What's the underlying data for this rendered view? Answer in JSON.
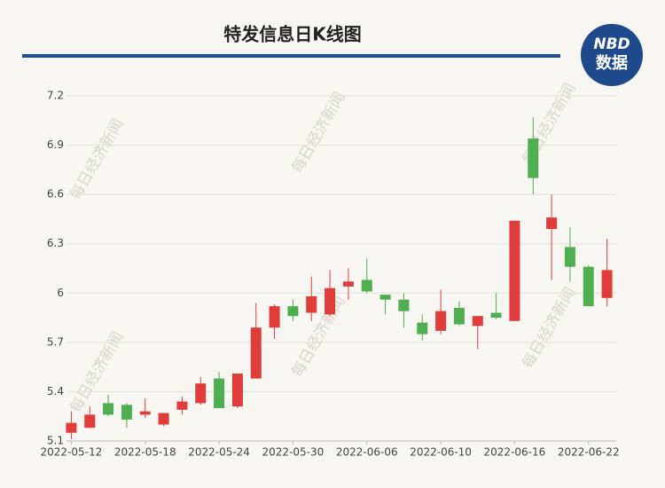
{
  "chart_data": {
    "type": "candlestick",
    "title": "特发信息日K线图",
    "logo": {
      "top": "NBD",
      "bottom": "数据"
    },
    "watermark": "每日经济新闻",
    "categories": [
      "2022-05-12",
      null,
      null,
      null,
      "2022-05-18",
      null,
      null,
      null,
      "2022-05-24",
      null,
      null,
      null,
      "2022-05-30",
      null,
      null,
      null,
      "2022-06-06",
      null,
      null,
      null,
      "2022-06-10",
      null,
      null,
      null,
      "2022-06-16",
      null,
      null,
      null,
      "2022-06-22",
      null
    ],
    "open": [
      5.15,
      5.18,
      5.33,
      5.32,
      5.26,
      5.2,
      5.29,
      5.33,
      5.48,
      5.31,
      5.48,
      5.79,
      5.92,
      5.88,
      5.87,
      6.04,
      6.08,
      5.99,
      5.96,
      5.82,
      5.77,
      5.91,
      5.8,
      5.88,
      5.83,
      6.94,
      6.39,
      6.28,
      6.16,
      5.97
    ],
    "high": [
      5.28,
      5.31,
      5.38,
      5.33,
      5.36,
      5.27,
      5.37,
      5.49,
      5.52,
      5.51,
      5.94,
      5.93,
      5.96,
      6.1,
      6.14,
      6.15,
      6.21,
      5.99,
      6.0,
      5.87,
      6.02,
      5.95,
      5.86,
      6.0,
      6.44,
      7.07,
      6.6,
      6.4,
      6.17,
      6.33
    ],
    "low": [
      5.11,
      5.18,
      5.25,
      5.18,
      5.24,
      5.19,
      5.26,
      5.32,
      5.3,
      5.3,
      5.48,
      5.72,
      5.83,
      5.83,
      5.86,
      5.96,
      6.0,
      5.87,
      5.79,
      5.71,
      5.75,
      5.8,
      5.66,
      5.84,
      5.83,
      6.6,
      6.08,
      6.07,
      5.92,
      5.92
    ],
    "close": [
      5.21,
      5.26,
      5.26,
      5.23,
      5.28,
      5.27,
      5.34,
      5.45,
      5.3,
      5.51,
      5.79,
      5.92,
      5.86,
      5.98,
      6.03,
      6.07,
      6.01,
      5.96,
      5.89,
      5.75,
      5.89,
      5.81,
      5.86,
      5.85,
      6.44,
      6.7,
      6.46,
      6.16,
      5.92,
      6.14
    ],
    "up_color": "#e03c3a",
    "down_color": "#4fae4f",
    "ylim": [
      5.1,
      7.2
    ],
    "yticks": [
      5.1,
      5.4,
      5.7,
      6,
      6.3,
      6.6,
      6.9,
      7.2
    ],
    "grid": true
  }
}
